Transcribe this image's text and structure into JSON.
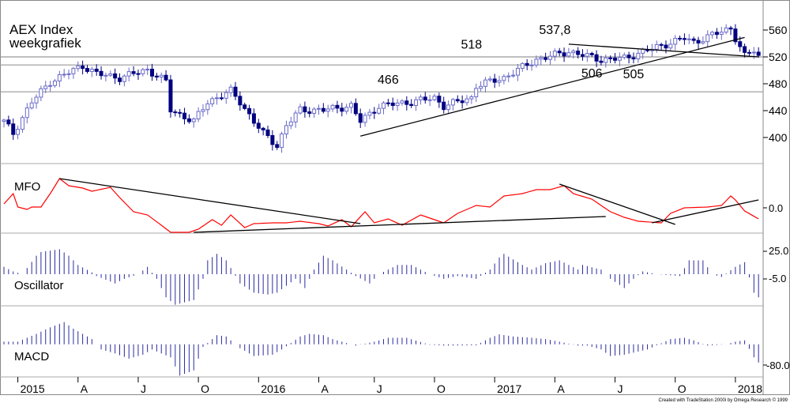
{
  "chart_data": {
    "type": "candlestick+line+bar",
    "title": "AEX Index",
    "subtitle": "weekgrafiek",
    "weeks": 164,
    "price": {
      "yticks": [
        400,
        440,
        480,
        520,
        560
      ],
      "ylim": [
        375,
        590
      ],
      "close_keypoints": [
        [
          0,
          424
        ],
        [
          2,
          406
        ],
        [
          6,
          453
        ],
        [
          10,
          483
        ],
        [
          17,
          507
        ],
        [
          20,
          495
        ],
        [
          25,
          489
        ],
        [
          31,
          501
        ],
        [
          35,
          483
        ],
        [
          36,
          441
        ],
        [
          41,
          424
        ],
        [
          44,
          453
        ],
        [
          49,
          469
        ],
        [
          51,
          453
        ],
        [
          54,
          424
        ],
        [
          56,
          406
        ],
        [
          59,
          388
        ],
        [
          61,
          418
        ],
        [
          64,
          441
        ],
        [
          69,
          441
        ],
        [
          75,
          447
        ],
        [
          77,
          424
        ],
        [
          81,
          447
        ],
        [
          88,
          453
        ],
        [
          93,
          459
        ],
        [
          95,
          447
        ],
        [
          101,
          459
        ],
        [
          102,
          477
        ],
        [
          108,
          489
        ],
        [
          115,
          516
        ],
        [
          122,
          528
        ],
        [
          129,
          516
        ],
        [
          134,
          518
        ],
        [
          139,
          530
        ],
        [
          147,
          548
        ],
        [
          149,
          542
        ],
        [
          157,
          563
        ],
        [
          158,
          548
        ],
        [
          160,
          521
        ],
        [
          162,
          530
        ],
        [
          163,
          521
        ]
      ],
      "horizontal_levels": [
        520,
        508,
        468
      ],
      "trendlines": [
        {
          "from": [
            77,
            402
          ],
          "to": [
            160,
            549
          ]
        },
        {
          "from": [
            122,
            539
          ],
          "to": [
            163,
            520
          ]
        }
      ],
      "annotations": [
        {
          "text": "466",
          "week": 83,
          "value": 466
        },
        {
          "text": "518",
          "week": 101,
          "value": 518
        },
        {
          "text": "537,8",
          "week": 119,
          "value": 537.8
        },
        {
          "text": "506",
          "week": 127,
          "value": 506
        },
        {
          "text": "505",
          "week": 136,
          "value": 505
        }
      ]
    },
    "mfo": {
      "label": "MFO",
      "ytick_label": "0.0",
      "keypoints": [
        [
          0,
          5
        ],
        [
          2,
          18
        ],
        [
          3,
          1
        ],
        [
          5,
          -2
        ],
        [
          6,
          1
        ],
        [
          8,
          1
        ],
        [
          10,
          18
        ],
        [
          12,
          37
        ],
        [
          14,
          28
        ],
        [
          17,
          25
        ],
        [
          19,
          21
        ],
        [
          23,
          26
        ],
        [
          25,
          13
        ],
        [
          28,
          -5
        ],
        [
          31,
          -9
        ],
        [
          34,
          -22
        ],
        [
          36,
          -31
        ],
        [
          40,
          -31
        ],
        [
          42,
          -27
        ],
        [
          45,
          -15
        ],
        [
          47,
          -22
        ],
        [
          49,
          -9
        ],
        [
          52,
          -25
        ],
        [
          54,
          -20
        ],
        [
          58,
          -19
        ],
        [
          61,
          -19
        ],
        [
          64,
          -17
        ],
        [
          68,
          -20
        ],
        [
          70,
          -23
        ],
        [
          73,
          -15
        ],
        [
          75,
          -24
        ],
        [
          78,
          -5
        ],
        [
          80,
          -19
        ],
        [
          83,
          -14
        ],
        [
          86,
          -22
        ],
        [
          90,
          -9
        ],
        [
          95,
          -19
        ],
        [
          98,
          -7
        ],
        [
          102,
          3
        ],
        [
          105,
          1
        ],
        [
          108,
          15
        ],
        [
          112,
          18
        ],
        [
          115,
          23
        ],
        [
          118,
          23
        ],
        [
          121,
          28
        ],
        [
          123,
          18
        ],
        [
          127,
          11
        ],
        [
          131,
          -5
        ],
        [
          134,
          -12
        ],
        [
          137,
          -17
        ],
        [
          142,
          -19
        ],
        [
          144,
          -7
        ],
        [
          147,
          0
        ],
        [
          152,
          1
        ],
        [
          155,
          3
        ],
        [
          157,
          15
        ],
        [
          158,
          10
        ],
        [
          160,
          -4
        ],
        [
          163,
          -14
        ]
      ],
      "trendlines": [
        {
          "from": [
            12,
            37
          ],
          "to": [
            77,
            -20
          ]
        },
        {
          "from": [
            41,
            -31
          ],
          "to": [
            130,
            -11
          ]
        },
        {
          "from": [
            120,
            30
          ],
          "to": [
            145,
            -21
          ]
        },
        {
          "from": [
            140,
            -19
          ],
          "to": [
            163,
            10
          ]
        }
      ]
    },
    "oscillator": {
      "label": "Oscillator",
      "ytick_labels": [
        "25.0",
        "-5.0"
      ],
      "keypoints": [
        [
          0,
          8
        ],
        [
          2,
          3
        ],
        [
          4,
          0
        ],
        [
          7,
          20
        ],
        [
          8,
          24
        ],
        [
          12,
          27
        ],
        [
          14,
          20
        ],
        [
          16,
          10
        ],
        [
          19,
          2
        ],
        [
          20,
          -2
        ],
        [
          24,
          -10
        ],
        [
          26,
          -5
        ],
        [
          29,
          0
        ],
        [
          31,
          8
        ],
        [
          33,
          -5
        ],
        [
          35,
          -25
        ],
        [
          37,
          -33
        ],
        [
          41,
          -28
        ],
        [
          43,
          -5
        ],
        [
          44,
          15
        ],
        [
          46,
          22
        ],
        [
          48,
          15
        ],
        [
          51,
          -10
        ],
        [
          54,
          -20
        ],
        [
          57,
          -22
        ],
        [
          59,
          -20
        ],
        [
          63,
          -5
        ],
        [
          65,
          -15
        ],
        [
          67,
          5
        ],
        [
          69,
          20
        ],
        [
          71,
          15
        ],
        [
          74,
          5
        ],
        [
          76,
          -2
        ],
        [
          79,
          -10
        ],
        [
          81,
          0
        ],
        [
          85,
          10
        ],
        [
          88,
          10
        ],
        [
          92,
          0
        ],
        [
          95,
          -5
        ],
        [
          98,
          -2
        ],
        [
          102,
          -5
        ],
        [
          105,
          5
        ],
        [
          107,
          18
        ],
        [
          108,
          22
        ],
        [
          112,
          10
        ],
        [
          114,
          5
        ],
        [
          117,
          12
        ],
        [
          120,
          15
        ],
        [
          124,
          5
        ],
        [
          125,
          10
        ],
        [
          129,
          5
        ],
        [
          131,
          -5
        ],
        [
          134,
          -15
        ],
        [
          136,
          -5
        ],
        [
          138,
          3
        ],
        [
          141,
          0
        ],
        [
          146,
          -2
        ],
        [
          148,
          15
        ],
        [
          151,
          15
        ],
        [
          153,
          0
        ],
        [
          155,
          -3
        ],
        [
          158,
          8
        ],
        [
          160,
          13
        ],
        [
          162,
          -20
        ],
        [
          163,
          -25
        ]
      ]
    },
    "macd": {
      "label": "MACD",
      "ytick_label": "-80.0",
      "keypoints": [
        [
          0,
          10
        ],
        [
          3,
          10
        ],
        [
          7,
          40
        ],
        [
          10,
          65
        ],
        [
          13,
          85
        ],
        [
          15,
          60
        ],
        [
          19,
          20
        ],
        [
          21,
          -20
        ],
        [
          24,
          -35
        ],
        [
          27,
          -55
        ],
        [
          30,
          -40
        ],
        [
          32,
          -20
        ],
        [
          36,
          -50
        ],
        [
          38,
          -120
        ],
        [
          41,
          -100
        ],
        [
          43,
          -10
        ],
        [
          46,
          35
        ],
        [
          48,
          30
        ],
        [
          51,
          -15
        ],
        [
          54,
          -45
        ],
        [
          58,
          -40
        ],
        [
          60,
          -20
        ],
        [
          64,
          30
        ],
        [
          66,
          40
        ],
        [
          69,
          35
        ],
        [
          71,
          20
        ],
        [
          74,
          5
        ],
        [
          76,
          -5
        ],
        [
          80,
          10
        ],
        [
          83,
          25
        ],
        [
          87,
          25
        ],
        [
          92,
          -2
        ],
        [
          95,
          -5
        ],
        [
          98,
          -5
        ],
        [
          102,
          -4
        ],
        [
          105,
          25
        ],
        [
          107,
          38
        ],
        [
          110,
          30
        ],
        [
          114,
          25
        ],
        [
          117,
          20
        ],
        [
          120,
          10
        ],
        [
          124,
          -5
        ],
        [
          126,
          -5
        ],
        [
          129,
          -20
        ],
        [
          131,
          -45
        ],
        [
          134,
          -40
        ],
        [
          139,
          -20
        ],
        [
          144,
          20
        ],
        [
          147,
          25
        ],
        [
          149,
          15
        ],
        [
          152,
          -5
        ],
        [
          156,
          0
        ],
        [
          158,
          10
        ],
        [
          160,
          15
        ],
        [
          162,
          -50
        ],
        [
          163,
          -70
        ]
      ]
    },
    "x_ticks": [
      {
        "label": "2015",
        "week": 3
      },
      {
        "label": "A",
        "week": 16
      },
      {
        "label": "J",
        "week": 29
      },
      {
        "label": "O",
        "week": 42
      },
      {
        "label": "2016",
        "week": 55
      },
      {
        "label": "A",
        "week": 68
      },
      {
        "label": "J",
        "week": 80
      },
      {
        "label": "O",
        "week": 93
      },
      {
        "label": "2017",
        "week": 106
      },
      {
        "label": "A",
        "week": 119
      },
      {
        "label": "J",
        "week": 132
      },
      {
        "label": "O",
        "week": 145
      },
      {
        "label": "2018",
        "week": 158
      }
    ],
    "colors": {
      "bear": "#000080",
      "bull": "#6a6ac8",
      "mfo": "#ff0000",
      "hist": "#2a2aa0",
      "trend": "#000000",
      "grid": "#999999"
    }
  },
  "footer": {
    "credit": "Created with TradeStation 2000i by Omega Research © 1999"
  }
}
